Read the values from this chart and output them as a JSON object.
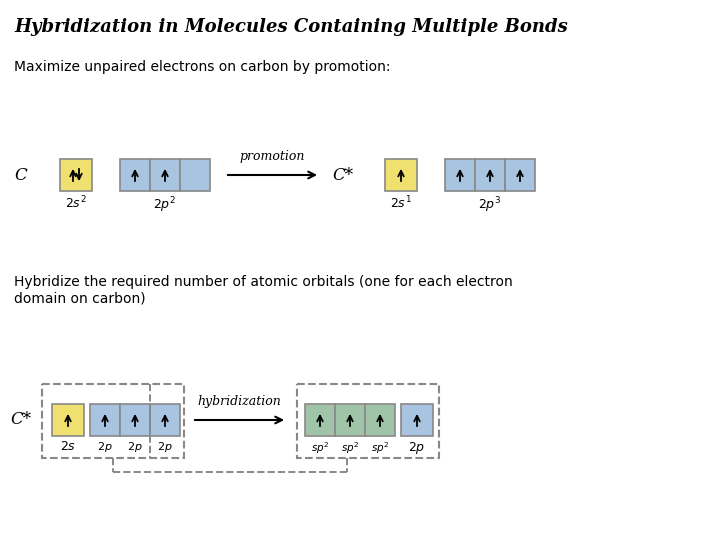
{
  "title": "Hybridization in Molecules Containing Multiple Bonds",
  "subtitle1": "Maximize unpaired electrons on carbon by promotion:",
  "subtitle2": "Hybridize the required number of atomic orbitals (one for each electron\ndomain on carbon)",
  "yellow_color": "#f0e070",
  "blue_color": "#a8c4e0",
  "green_color": "#a0c4a8",
  "box_edge_color": "#888888",
  "dashed_box_color": "#888888"
}
